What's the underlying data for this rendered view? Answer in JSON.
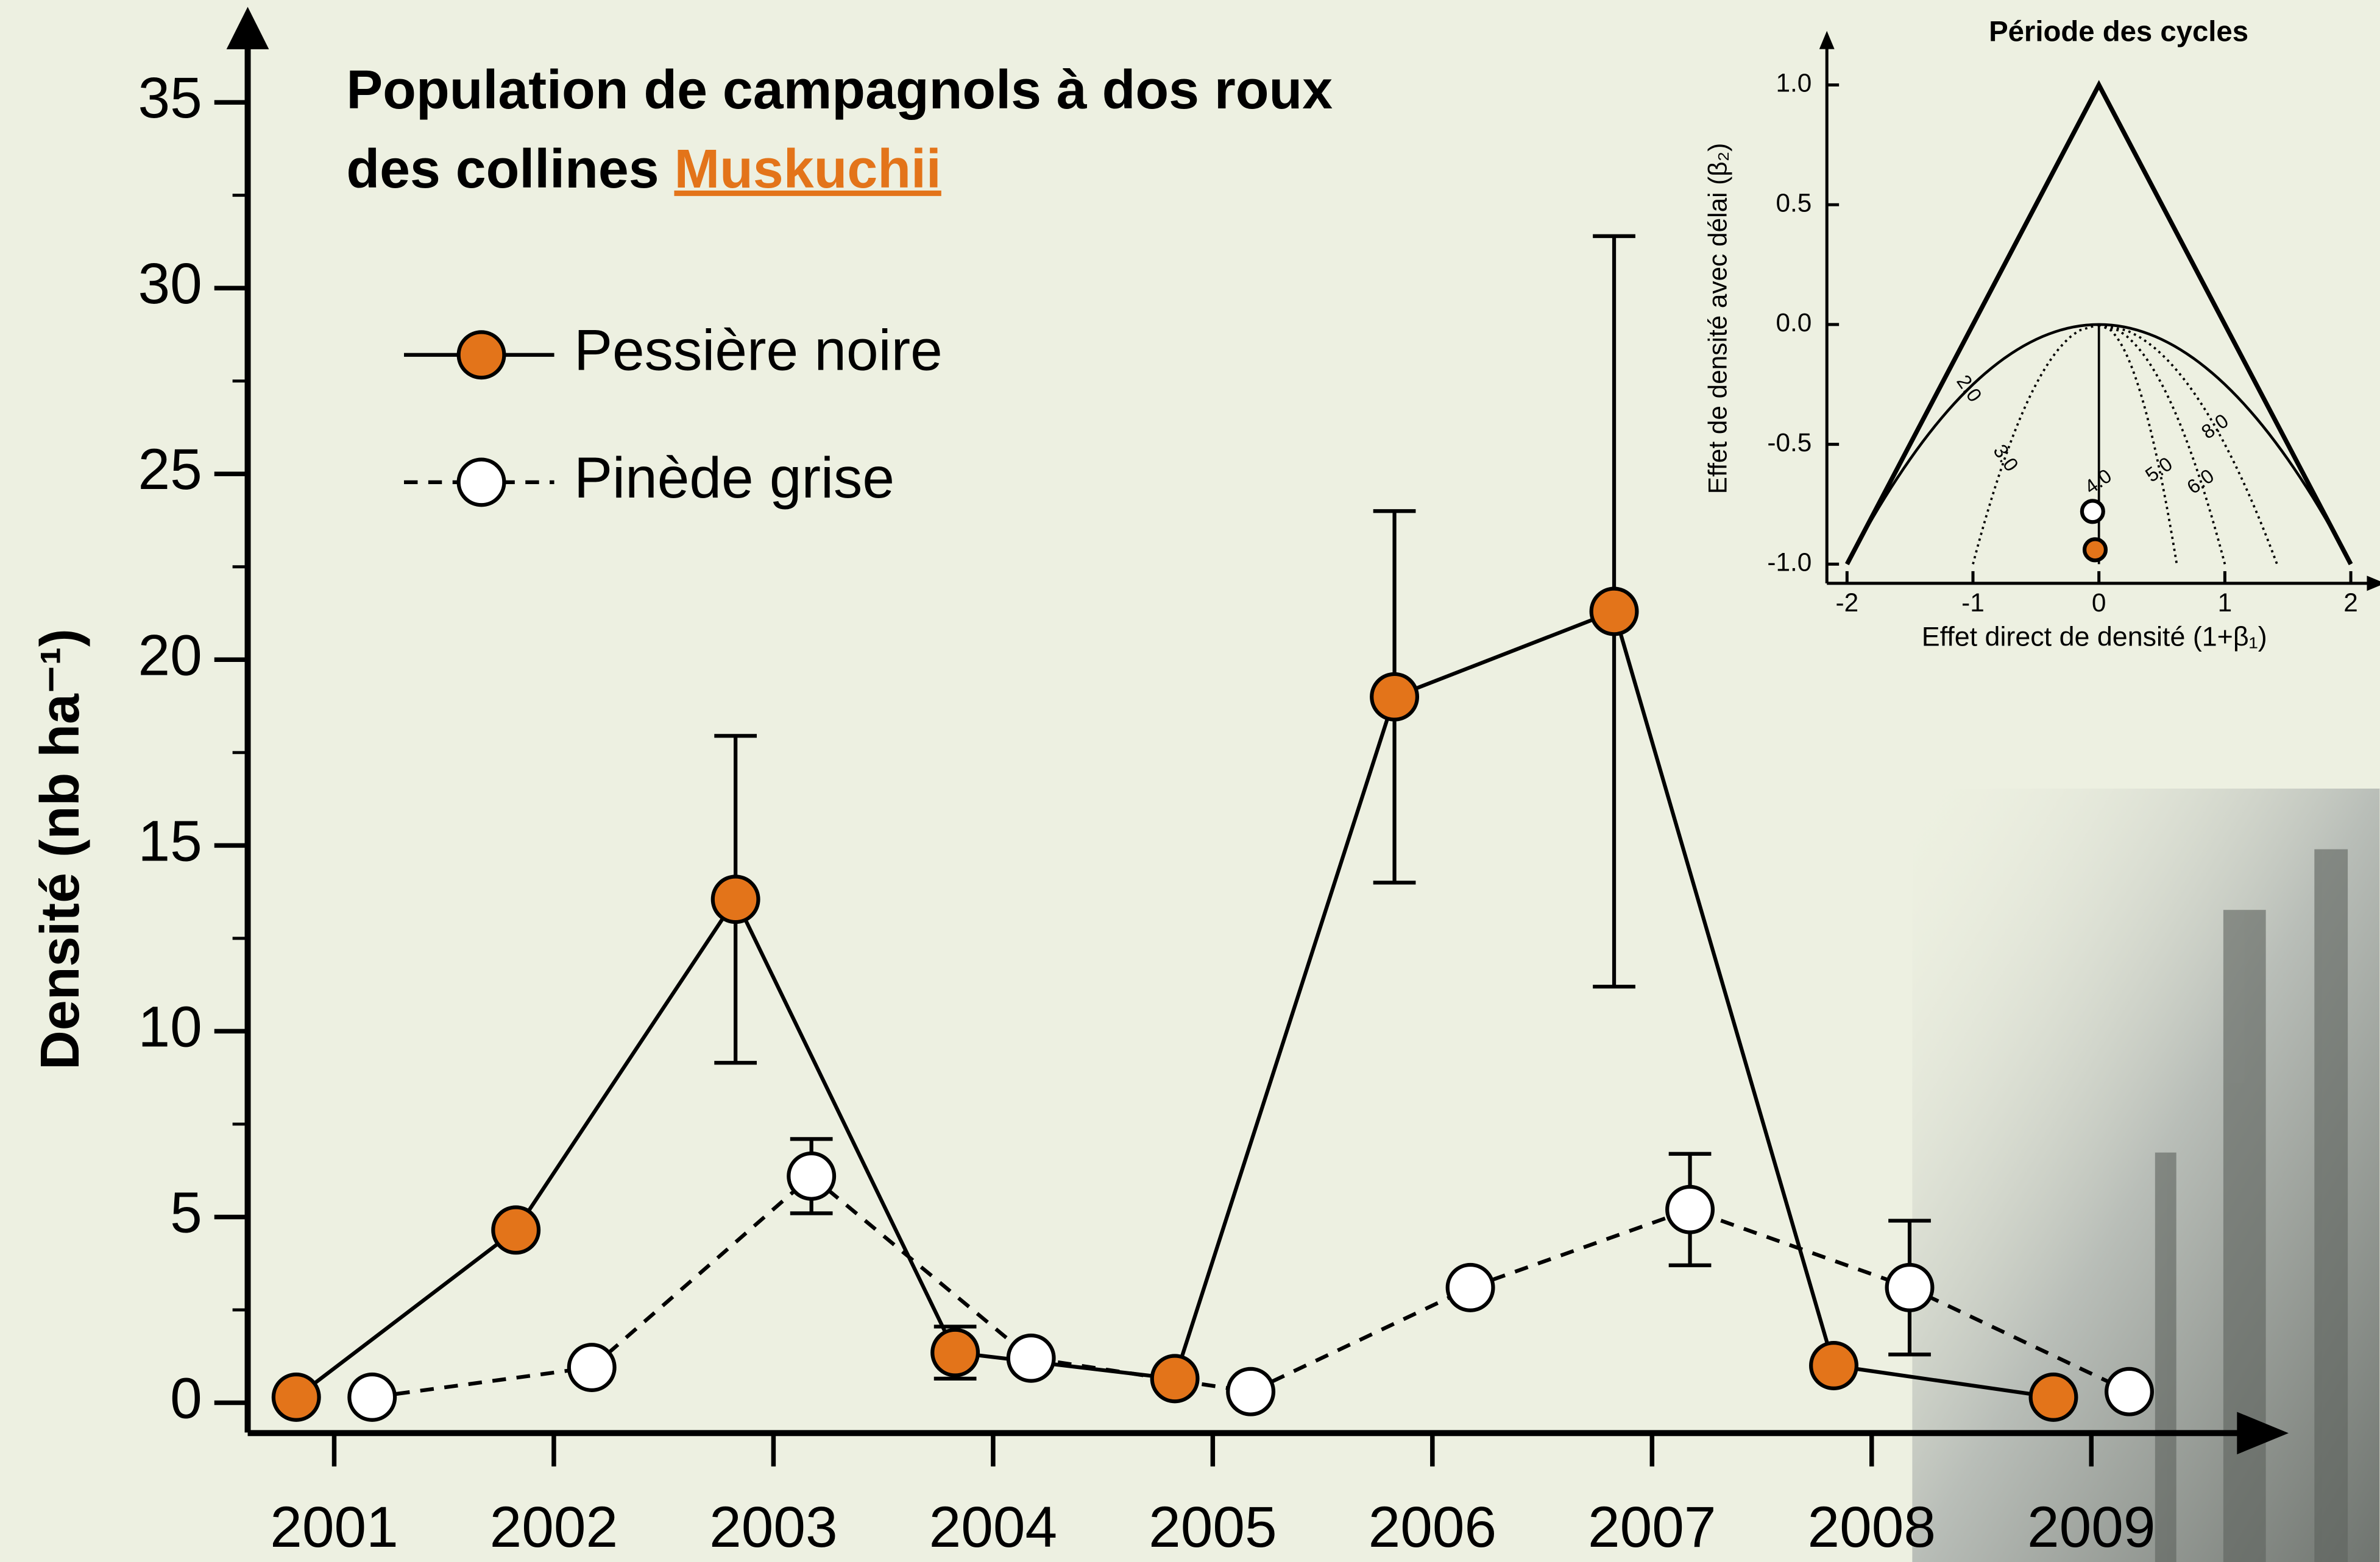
{
  "chart_data": [
    {
      "type": "line",
      "title": [
        "Population de campagnols à dos roux",
        "des collines"
      ],
      "title_link": "Muskuchii",
      "title_link_color": "#e3741a",
      "ylabel": "Densité (nb ha⁻¹)",
      "categories": [
        "2001",
        "2002",
        "2003",
        "2004",
        "2005",
        "2006",
        "2007",
        "2008",
        "2009"
      ],
      "series": [
        {
          "name": "Pessière noire",
          "color": "#e3741a",
          "dash": false,
          "values": [
            0.15,
            4.65,
            13.55,
            1.35,
            0.65,
            19.0,
            21.3,
            1.0,
            0.15
          ],
          "errors": [
            null,
            null,
            4.4,
            0.7,
            null,
            5.0,
            10.1,
            null,
            null
          ]
        },
        {
          "name": "Pinède grise",
          "color": "#ffffff",
          "dash": true,
          "values": [
            0.15,
            0.95,
            6.1,
            1.2,
            0.3,
            3.1,
            5.2,
            3.1,
            0.3
          ],
          "errors": [
            null,
            null,
            1.0,
            null,
            null,
            null,
            1.5,
            1.8,
            null
          ]
        }
      ],
      "ylim": [
        -0.8,
        37
      ],
      "yticks": [
        0,
        5,
        10,
        15,
        20,
        25,
        30,
        35
      ],
      "yticks_minor": [
        2.5,
        7.5,
        12.5,
        17.5,
        22.5,
        27.5,
        32.5
      ]
    },
    {
      "type": "scatter",
      "title": "Période des cycles",
      "xlabel": "Effet direct de densité (1+β₁)",
      "ylabel": "Effet de densité avec délai (β₂)",
      "x": [
        -0.05,
        -0.03
      ],
      "values": [
        -0.78,
        -0.94
      ],
      "colors": [
        "#ffffff",
        "#e3741a"
      ],
      "xlim": [
        -2.16,
        2.2
      ],
      "ylim": [
        -1.08,
        1.2
      ],
      "xticks": [
        -2,
        -1,
        0,
        1,
        2
      ],
      "yticks": [
        {
          "value": 1,
          "label": "1.0"
        },
        {
          "value": 0.5,
          "label": "0.5"
        },
        {
          "value": 0,
          "label": "0.0"
        },
        {
          "value": -0.5,
          "label": "-0.5"
        },
        {
          "value": -1,
          "label": "-1.0"
        }
      ],
      "period_contours": [
        {
          "value": 2,
          "label": "2.0"
        },
        {
          "value": 3,
          "label": "3.0"
        },
        {
          "value": 4,
          "label": "4.0"
        },
        {
          "value": 5,
          "label": "5.0"
        },
        {
          "value": 6,
          "label": "6.0"
        },
        {
          "value": 8,
          "label": "8.0"
        }
      ]
    }
  ]
}
